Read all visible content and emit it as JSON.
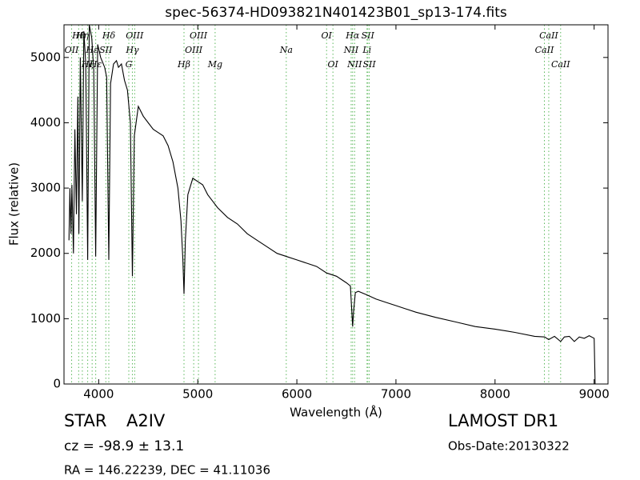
{
  "chart_data": {
    "type": "line",
    "title": "spec-56374-HD093821N401423B01_sp13-174.fits",
    "x_label": "Wavelength (Å)",
    "y_label": "Flux (relative)",
    "color": "#000000",
    "annotation_color": "#5cb85c",
    "xlim": [
      3650,
      9140
    ],
    "ylim": [
      0,
      5500
    ],
    "xticks": [
      4000,
      5000,
      6000,
      7000,
      8000,
      9000
    ],
    "yticks": [
      0,
      1000,
      2000,
      3000,
      4000,
      5000
    ],
    "x": [
      3700,
      3710,
      3720,
      3730,
      3745,
      3760,
      3775,
      3790,
      3800,
      3815,
      3835,
      3850,
      3870,
      3889,
      3905,
      3930,
      3950,
      3970,
      3990,
      4020,
      4060,
      4080,
      4102,
      4120,
      4150,
      4180,
      4200,
      4230,
      4260,
      4290,
      4320,
      4340,
      4360,
      4400,
      4450,
      4500,
      4550,
      4600,
      4650,
      4700,
      4750,
      4800,
      4830,
      4850,
      4861,
      4875,
      4900,
      4950,
      5000,
      5050,
      5100,
      5150,
      5200,
      5300,
      5400,
      5500,
      5600,
      5700,
      5800,
      5900,
      6000,
      6100,
      6200,
      6300,
      6400,
      6500,
      6540,
      6555,
      6563,
      6572,
      6590,
      6620,
      6700,
      6800,
      6900,
      7000,
      7200,
      7400,
      7600,
      7800,
      8000,
      8200,
      8400,
      8500,
      8542,
      8600,
      8662,
      8700,
      8750,
      8800,
      8850,
      8900,
      8950,
      9000,
      9010
    ],
    "values": [
      2200,
      3000,
      2300,
      3050,
      2000,
      3900,
      2600,
      4400,
      2300,
      5000,
      2800,
      5400,
      4900,
      1900,
      5500,
      5300,
      4800,
      1950,
      5200,
      5000,
      4850,
      4700,
      1900,
      4600,
      4900,
      4950,
      4850,
      4900,
      4650,
      4500,
      4000,
      1650,
      3800,
      4250,
      4100,
      4000,
      3900,
      3850,
      3800,
      3650,
      3400,
      3000,
      2500,
      1900,
      1380,
      2200,
      2900,
      3150,
      3100,
      3050,
      2900,
      2800,
      2700,
      2550,
      2450,
      2300,
      2200,
      2100,
      2000,
      1950,
      1900,
      1850,
      1800,
      1700,
      1650,
      1550,
      1500,
      1100,
      880,
      1100,
      1400,
      1420,
      1370,
      1300,
      1250,
      1200,
      1100,
      1020,
      950,
      880,
      840,
      790,
      730,
      720,
      680,
      730,
      650,
      720,
      730,
      650,
      720,
      700,
      740,
      700,
      0
    ],
    "annotations": [
      {
        "text": "Hη",
        "x": 3835
      },
      {
        "text": "OII",
        "x": 3727
      },
      {
        "text": "Hζ",
        "x": 3889
      },
      {
        "text": "Hδ",
        "x": 4102
      },
      {
        "text": "SII",
        "x": 4072
      },
      {
        "text": "Hε",
        "x": 3970
      },
      {
        "text": "OIII",
        "x": 4363
      },
      {
        "text": "Hγ",
        "x": 4340
      },
      {
        "text": "G",
        "x": 4304
      },
      {
        "text": "OIII",
        "x": 5007
      },
      {
        "text": "OIII",
        "x": 4959
      },
      {
        "text": "Hβ",
        "x": 4861
      },
      {
        "text": "OI",
        "x": 6300
      },
      {
        "text": "Na",
        "x": 5893
      },
      {
        "text": "Mg",
        "x": 5175
      },
      {
        "text": "Hα",
        "x": 6563
      },
      {
        "text": "NII",
        "x": 6548
      },
      {
        "text": "OI",
        "x": 6364
      },
      {
        "text": "SII",
        "x": 6716
      },
      {
        "text": "Li",
        "x": 6708
      },
      {
        "text": "NII",
        "x": 6583
      },
      {
        "text": "CaII",
        "x": 8542
      },
      {
        "text": "CaII",
        "x": 8498
      },
      {
        "text": "SII",
        "x": 6731
      },
      {
        "text": "Hθ",
        "x": 3798
      },
      {
        "text": "Hε",
        "x": 3934
      },
      {
        "text": "CaII",
        "x": 8662
      }
    ],
    "info": {
      "object_class": "STAR",
      "subclass": "A2IV",
      "redshift": "cz = -98.9 ± 13.1",
      "coordinates": "RA = 146.22239, DEC = 41.11036",
      "survey": "LAMOST DR1",
      "obs_date": "Obs-Date:20130322"
    }
  }
}
